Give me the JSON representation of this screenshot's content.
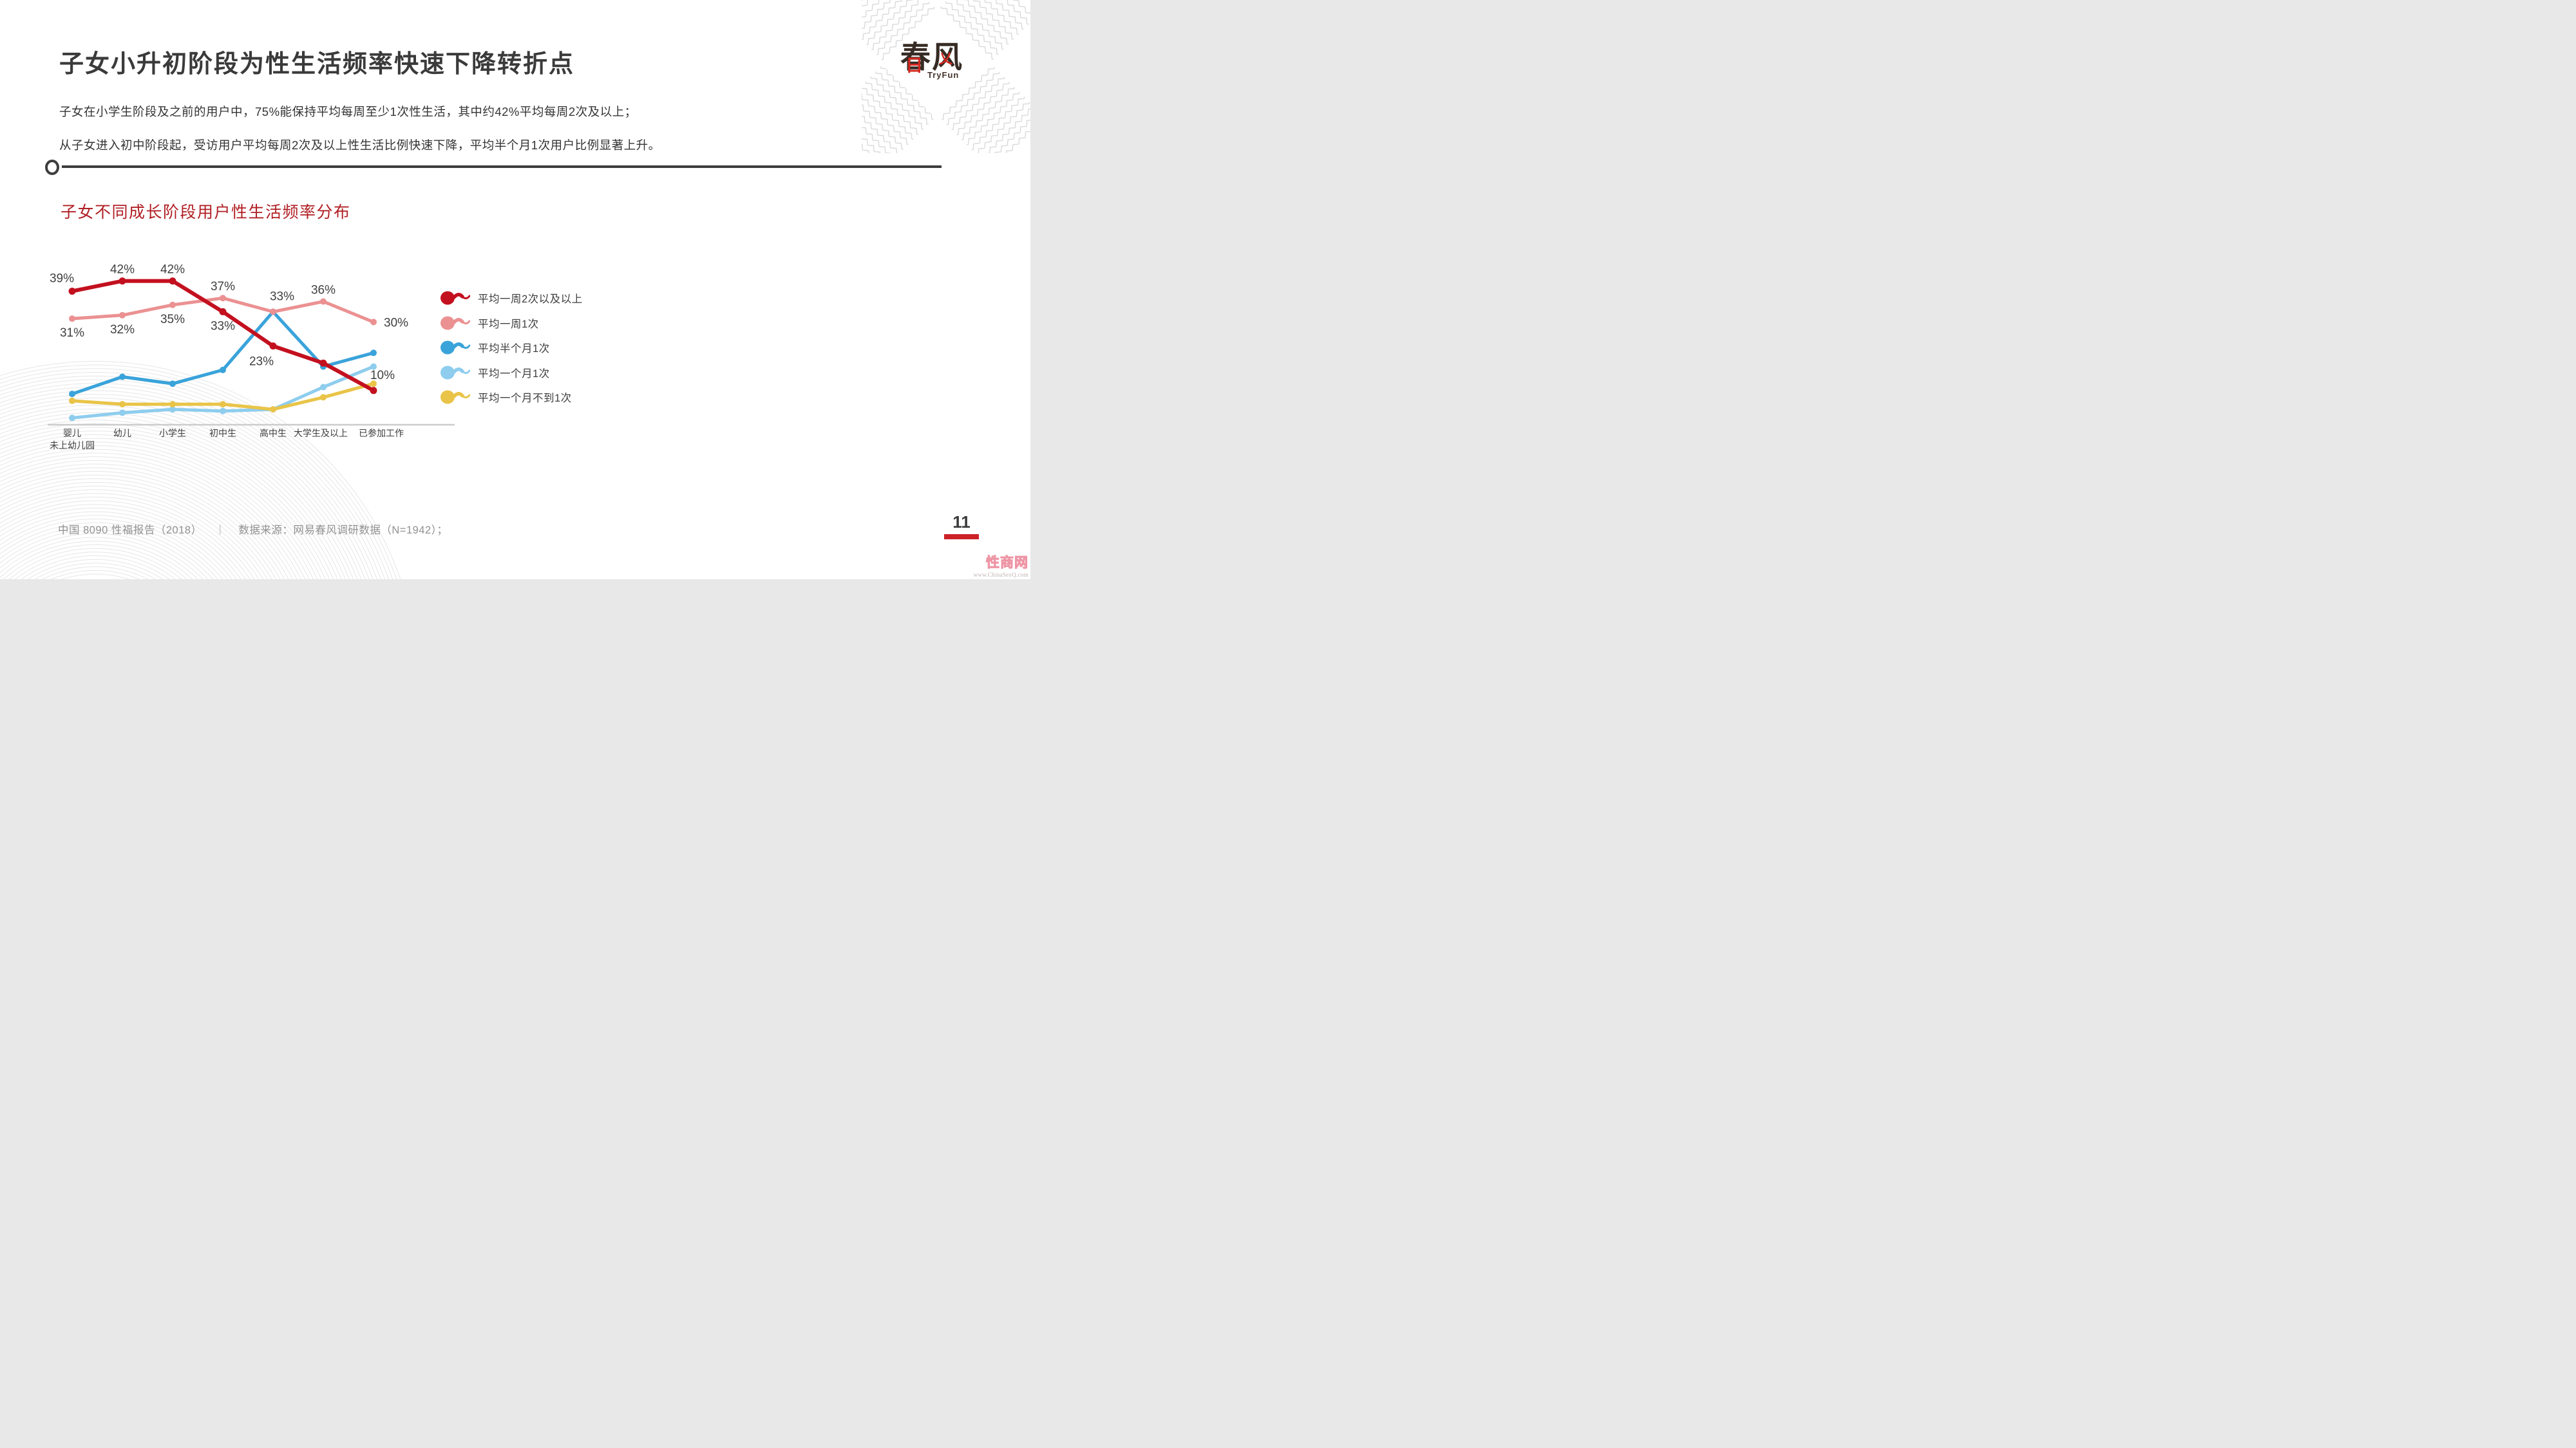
{
  "page": {
    "title": "子女小升初阶段为性生活频率快速下降转折点",
    "paragraph_line1": "子女在小学生阶段及之前的用户中，75%能保持平均每周至少1次性生活，其中约42%平均每周2次及以上；",
    "paragraph_line2": "从子女进入初中阶段起，受访用户平均每周2次及以上性生活比例快速下降，平均半个月1次用户比例显著上升。",
    "page_number": "11"
  },
  "logo": {
    "char1": "春",
    "char2": "风",
    "accent_ri": "日",
    "accent_yi": "乂",
    "subtext": "TryFun"
  },
  "section": {
    "chart_heading": "子女不同成长阶段用户性生活频率分布"
  },
  "chart_data": {
    "type": "line",
    "title": "子女不同成长阶段用户性生活频率分布",
    "categories": [
      "婴儿\n未上幼儿园",
      "幼儿",
      "小学生",
      "初中生",
      "高中生",
      "大学生及以上",
      "已参加工作"
    ],
    "cat_dx": [
      0,
      0,
      0,
      0,
      0,
      -4,
      12
    ],
    "ylim": [
      0,
      45
    ],
    "grid": false,
    "legend_position": "right-middle",
    "xlabel": "",
    "ylabel": "",
    "series": [
      {
        "name": "平均一周2次以及以上",
        "color": "#c3101f",
        "values": [
          39,
          42,
          42,
          33,
          23,
          18,
          10
        ],
        "labels": [
          "39%",
          "42%",
          "42%",
          "33%",
          "23%",
          null,
          "10%"
        ],
        "label_pos": [
          "above-left",
          "above",
          "above",
          "below",
          "below-left",
          null,
          "above-right"
        ]
      },
      {
        "name": "平均一周1次",
        "color": "#eb9192",
        "values": [
          31,
          32,
          35,
          37,
          33,
          36,
          30
        ],
        "labels": [
          "31%",
          "32%",
          "35%",
          "37%",
          "33%",
          "36%",
          "30%"
        ],
        "label_pos": [
          "below",
          "below",
          "below",
          "above",
          "above-right",
          "above",
          "right"
        ]
      },
      {
        "name": "平均半个月1次",
        "color": "#3aa3da",
        "values": [
          9,
          14,
          12,
          16,
          33,
          17,
          21
        ],
        "labels": null,
        "label_pos": null
      },
      {
        "name": "平均一个月1次",
        "color": "#8ecdee",
        "values": [
          2,
          3.5,
          4.5,
          4,
          4.5,
          11,
          17
        ],
        "labels": null,
        "label_pos": null
      },
      {
        "name": "平均一个月不到1次",
        "color": "#e9c448",
        "values": [
          7,
          6,
          6,
          6,
          4.5,
          8,
          12
        ],
        "labels": null,
        "label_pos": null
      }
    ]
  },
  "footer": {
    "report": "中国 8090 性福报告（2018）",
    "separator": "|",
    "source": "数据来源：网易春风调研数据（N=1942）；"
  },
  "watermark": {
    "name": "性商网",
    "url": "www.ChinaSexQ.com"
  },
  "colors": {
    "title_text": "#3a3a3a",
    "body_text": "#333333",
    "heading_red": "#b01f24",
    "divider": "#3d3d3d",
    "axis_line": "#cccccc",
    "data_label": "#3f3f3f",
    "category_label": "#3d3d3d",
    "footer_text": "#919191",
    "page_bar_red": "#cb2127",
    "watermark_pink": "#ee96a6",
    "logo_black": "#362b24",
    "logo_red": "#d4281f"
  }
}
